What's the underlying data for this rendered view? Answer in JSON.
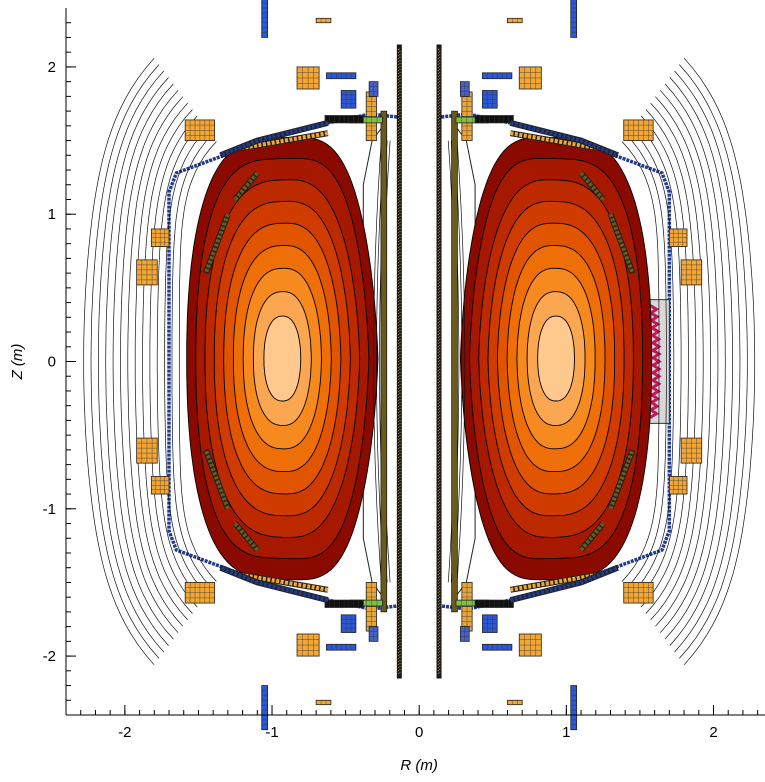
{
  "chart_data": {
    "type": "contour",
    "xlabel": "R (m)",
    "ylabel": "Z (m)",
    "xlim": [
      -2.4,
      2.35
    ],
    "ylim": [
      -2.4,
      2.4
    ],
    "x_ticks": [
      {
        "value": -2,
        "label": "-2"
      },
      {
        "value": -1,
        "label": "-1"
      },
      {
        "value": 0,
        "label": "0"
      },
      {
        "value": 1,
        "label": "1"
      },
      {
        "value": 2,
        "label": "2"
      }
    ],
    "y_ticks": [
      {
        "value": 2,
        "label": "2"
      },
      {
        "value": 1,
        "label": "1"
      },
      {
        "value": 0,
        "label": "0"
      },
      {
        "value": -1,
        "label": "-1"
      },
      {
        "value": -2,
        "label": "-2"
      }
    ],
    "plasma": {
      "axis_r": 0.93,
      "axis_z": 0.02,
      "inner_r": 0.28,
      "outer_r": 1.58,
      "half_height": 1.5,
      "levels": 8,
      "colors": [
        "#8b0a00",
        "#a71800",
        "#bd2a00",
        "#d03c00",
        "#e25500",
        "#ee6e08",
        "#f68a1e",
        "#fba650",
        "#ffc98e"
      ]
    },
    "colors": {
      "wall": "#1f3a8f",
      "pf_coil": "#f3a633",
      "solenoid": "#1a1a1a",
      "blue_coil": "#2b57d9",
      "green": "#7fc241",
      "antenna": "#c2185b",
      "port": "#d8d8d8"
    }
  }
}
